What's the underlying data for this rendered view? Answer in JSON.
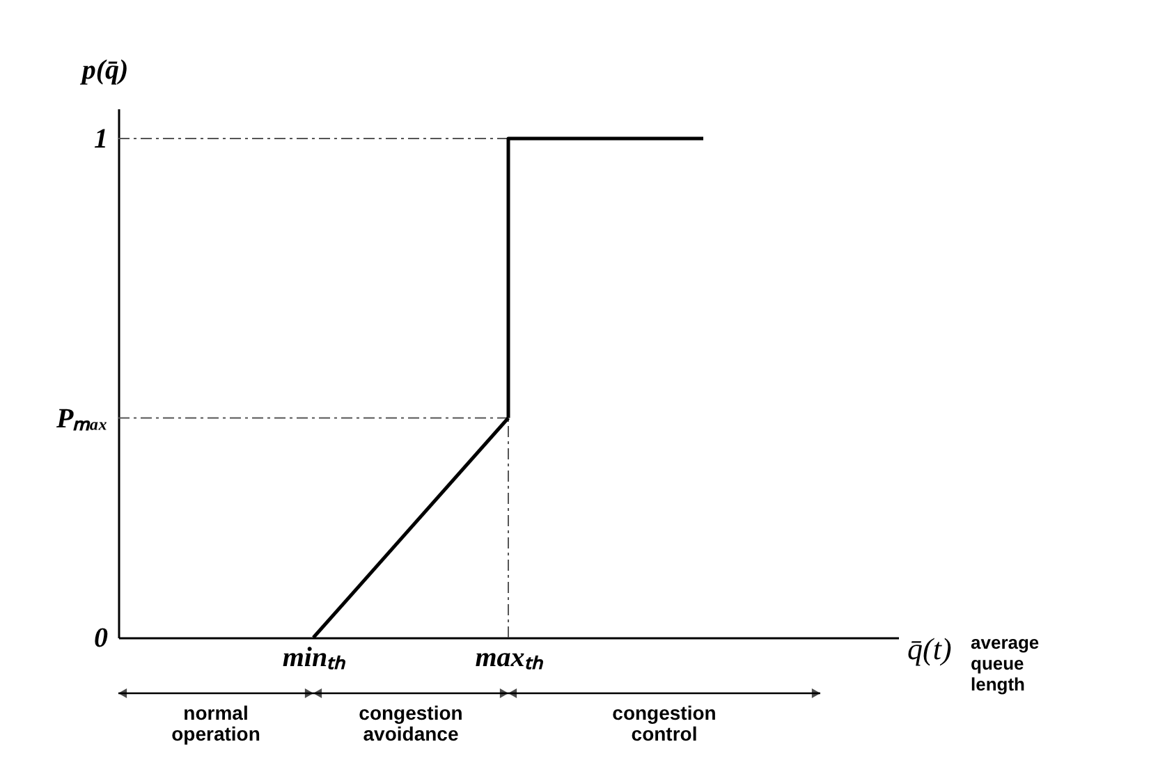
{
  "chart_data": {
    "type": "line",
    "xlabel": "q̄(t)",
    "ylabel": "p(q̄)",
    "categories": [
      null,
      "minₜₕ",
      "maxₜₕ",
      null,
      null
    ],
    "series": [
      {
        "color": "#000000",
        "values": [
          null,
          0,
          0.44,
          null,
          null
        ]
      },
      {
        "type": "step",
        "color": "#000000",
        "values": [
          null,
          null,
          0.44,
          1,
          null
        ]
      }
    ],
    "ylim": [
      0,
      1.06
    ],
    "yticks": [
      0,
      {
        "value": 0.44,
        "label": "Pₘₐₓ"
      },
      1
    ],
    "ref_lines": [
      {
        "axis": "y",
        "value": 1,
        "label": null,
        "color": "#555555",
        "line_style": "dashed"
      },
      {
        "axis": "y",
        "value": 0.44,
        "label": null,
        "color": "#555555",
        "line_style": "dashed"
      },
      {
        "axis": "x",
        "value": "maxₜₕ",
        "label": null,
        "color": "#555555",
        "line_style": "dashed"
      }
    ],
    "annotations": [
      "average queue length",
      "normal operation",
      "congestion avoidance",
      "congestion control"
    ],
    "line_style": "solid",
    "marker": "none",
    "grid": false
  }
}
